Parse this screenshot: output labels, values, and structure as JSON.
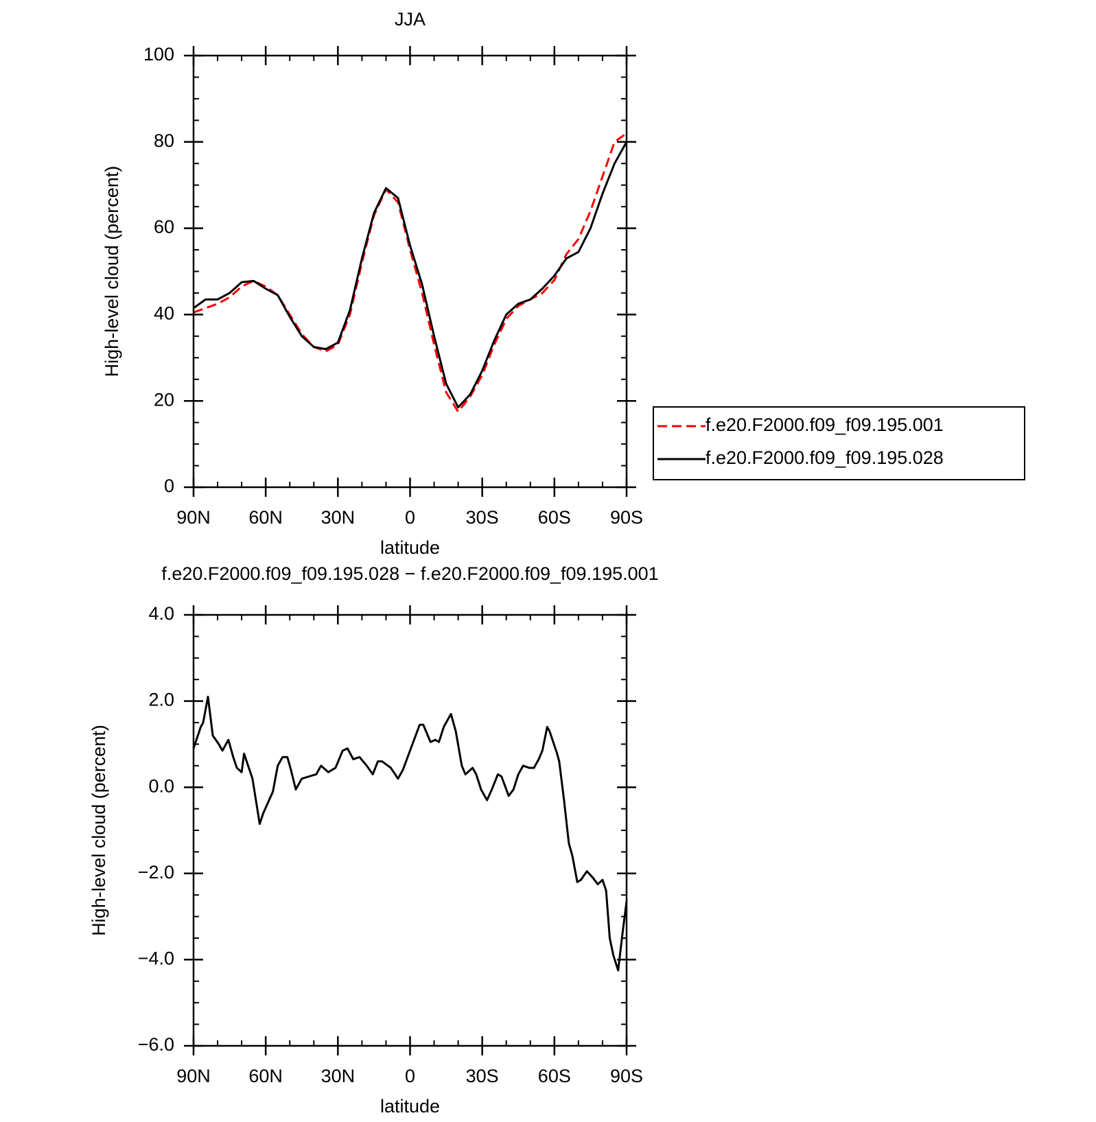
{
  "chart_data": [
    {
      "type": "line",
      "title": "JJA",
      "x_label": "latitude",
      "y_label": "High-level cloud (percent)",
      "x": [
        90,
        85,
        80,
        75,
        70,
        65,
        60,
        55,
        50,
        45,
        40,
        35,
        30,
        25,
        20,
        15,
        10,
        5,
        0,
        -5,
        -10,
        -15,
        -20,
        -25,
        -30,
        -35,
        -40,
        -45,
        -50,
        -55,
        -60,
        -65,
        -70,
        -75,
        -80,
        -85,
        -90
      ],
      "series": [
        {
          "name": "f.e20.F2000.f09_f09.195.001",
          "color": "#ff0000",
          "line_style": "dashed",
          "values": [
            40.5,
            41.5,
            42.5,
            44,
            46.5,
            47.8,
            46.5,
            44.5,
            40,
            35.5,
            32.5,
            31.5,
            33,
            40,
            52,
            63,
            69,
            66,
            55,
            45,
            33,
            22,
            17.5,
            21,
            26,
            33,
            39,
            42,
            43.5,
            45,
            48,
            54,
            57.5,
            64,
            72,
            80,
            82
          ]
        },
        {
          "name": "f.e20.F2000.f09_f09.195.028",
          "color": "#000000",
          "line_style": "solid",
          "values": [
            41.5,
            43.5,
            43.5,
            45,
            47.5,
            47.8,
            46,
            44.5,
            39.5,
            35,
            32.5,
            32,
            33.5,
            41,
            53,
            63.5,
            69.3,
            67,
            56,
            47,
            35,
            24,
            18.5,
            21.5,
            27,
            34,
            40,
            42.5,
            43.5,
            46,
            49,
            53,
            54.5,
            60,
            68,
            75,
            80
          ]
        }
      ],
      "xlim": [
        90,
        -90
      ],
      "xticks": [
        {
          "value": 90,
          "label": "90N"
        },
        {
          "value": 60,
          "label": "60N"
        },
        {
          "value": 30,
          "label": "30N"
        },
        0,
        {
          "value": -30,
          "label": "30S"
        },
        {
          "value": -60,
          "label": "60S"
        },
        {
          "value": -90,
          "label": "90S"
        }
      ],
      "ylim": [
        0,
        100
      ],
      "yticks": [
        0,
        20,
        40,
        60,
        80,
        100
      ],
      "legend": "right"
    },
    {
      "type": "line",
      "title": "f.e20.F2000.f09_f09.195.028 − f.e20.F2000.f09_f09.195.001",
      "x_label": "latitude",
      "y_label": "High-level cloud (percent)",
      "x": [
        90,
        87,
        86,
        84,
        82,
        79.5,
        78,
        75.5,
        73.5,
        72,
        70,
        69,
        65.5,
        62.5,
        61,
        57,
        55,
        53,
        51,
        49.5,
        47.5,
        45,
        42,
        39,
        37,
        34,
        31,
        28,
        26,
        23.6,
        21,
        18,
        15.5,
        13.4,
        11.6,
        8,
        5,
        3,
        -1,
        -4,
        -5.5,
        -8.5,
        -10.5,
        -12,
        -14,
        -17,
        -19,
        -21.5,
        -23,
        -26,
        -27.5,
        -29.5,
        -32,
        -34,
        -36.5,
        -38,
        -41,
        -43,
        -45,
        -47,
        -49.5,
        -51.5,
        -53.5,
        -55,
        -57,
        -58,
        -61,
        -62,
        -64,
        -66,
        -67.5,
        -69.5,
        -71,
        -73.5,
        -76,
        -78,
        -80,
        -81.5,
        -83,
        -84.5,
        -86.5,
        -88.5,
        -90
      ],
      "series": [
        {
          "color": "#000000",
          "line_style": "solid",
          "values": [
            0.9,
            1.4,
            1.5,
            2.1,
            1.2,
            1.0,
            0.85,
            1.1,
            0.7,
            0.45,
            0.35,
            0.78,
            0.2,
            -0.85,
            -0.6,
            -0.1,
            0.5,
            0.7,
            0.7,
            0.4,
            -0.05,
            0.2,
            0.25,
            0.3,
            0.5,
            0.35,
            0.45,
            0.85,
            0.9,
            0.65,
            0.7,
            0.5,
            0.3,
            0.6,
            0.6,
            0.45,
            0.2,
            0.4,
            1.0,
            1.45,
            1.45,
            1.05,
            1.1,
            1.05,
            1.4,
            1.7,
            1.3,
            0.5,
            0.3,
            0.45,
            0.3,
            -0.05,
            -0.3,
            -0.05,
            0.3,
            0.25,
            -0.2,
            -0.05,
            0.3,
            0.5,
            0.45,
            0.45,
            0.65,
            0.85,
            1.4,
            1.3,
            0.8,
            0.6,
            -0.3,
            -1.3,
            -1.6,
            -2.2,
            -2.15,
            -1.95,
            -2.1,
            -2.25,
            -2.15,
            -2.4,
            -3.5,
            -3.9,
            -4.25,
            -3.3,
            -2.65
          ]
        }
      ],
      "xlim": [
        90,
        -90
      ],
      "xticks": [
        {
          "value": 90,
          "label": "90N"
        },
        {
          "value": 60,
          "label": "60N"
        },
        {
          "value": 30,
          "label": "30N"
        },
        0,
        {
          "value": -30,
          "label": "30S"
        },
        {
          "value": -60,
          "label": "60S"
        },
        {
          "value": -90,
          "label": "90S"
        }
      ],
      "ylim": [
        -6,
        4
      ],
      "yticks": [
        {
          "value": -6,
          "label": "−6.0"
        },
        {
          "value": -4,
          "label": "−4.0"
        },
        {
          "value": -2,
          "label": "−2.0"
        },
        {
          "value": 0,
          "label": "0.0"
        },
        {
          "value": 2,
          "label": "2.0"
        },
        {
          "value": 4,
          "label": "4.0"
        }
      ]
    }
  ]
}
